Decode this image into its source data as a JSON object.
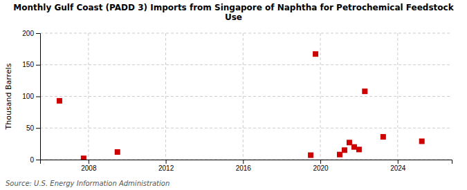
{
  "chart_data": {
    "type": "scatter",
    "title": "Monthly Gulf Coast (PADD 3) Imports from Singapore of Naphtha for Petrochemical Feedstock\nUse",
    "y_label": "Thousand Barrels",
    "annotations": [
      "Source: U.S. Energy Information Administration"
    ],
    "x": [
      2006.5,
      2007.75,
      2009.5,
      2019.5,
      2019.75,
      2021.0,
      2021.25,
      2021.5,
      2021.75,
      2022.0,
      2022.3,
      2023.25,
      2025.25
    ],
    "values": [
      93,
      2,
      12,
      7,
      167,
      8,
      15,
      27,
      20,
      16,
      108,
      36,
      29
    ],
    "color": "#cc0000",
    "marker": "square",
    "xlim": [
      2005.5,
      2026.8
    ],
    "xticks": [
      2008,
      2012,
      2016,
      2020,
      2024
    ],
    "ylim": [
      0,
      200
    ],
    "yticks": [
      0,
      50,
      100,
      150,
      200
    ],
    "grid": true
  }
}
